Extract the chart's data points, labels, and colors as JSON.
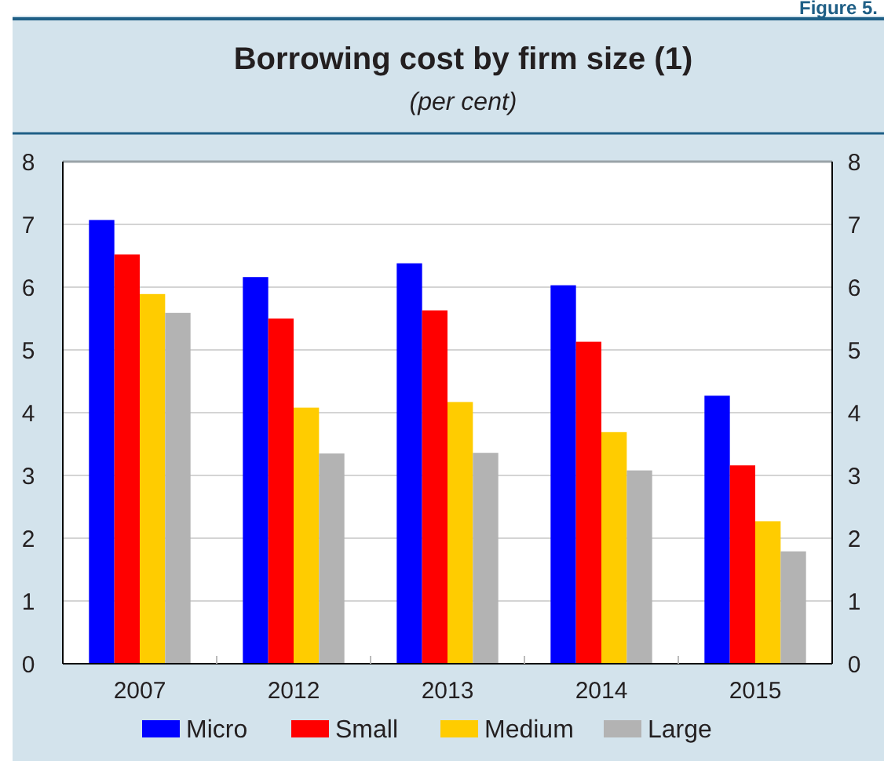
{
  "chart_data": {
    "type": "bar",
    "title": "Borrowing cost by firm size (1)",
    "subtitle": "(per cent)",
    "annotations": [
      "Figure 5."
    ],
    "categories": [
      "2007",
      "2012",
      "2013",
      "2014",
      "2015"
    ],
    "series": [
      {
        "name": "Micro",
        "color": "#0000ff",
        "values": [
          7.07,
          6.16,
          6.38,
          6.03,
          4.27
        ]
      },
      {
        "name": "Small",
        "color": "#ff0000",
        "values": [
          6.52,
          5.5,
          5.63,
          5.13,
          3.16
        ]
      },
      {
        "name": "Medium",
        "color": "#ffcc00",
        "values": [
          5.89,
          4.08,
          4.17,
          3.69,
          2.27
        ]
      },
      {
        "name": "Large",
        "color": "#b3b3b3",
        "values": [
          5.59,
          3.35,
          3.36,
          3.08,
          1.79
        ]
      }
    ],
    "ylim": [
      0,
      8
    ],
    "yticks": [
      0,
      1,
      2,
      3,
      4,
      5,
      6,
      7,
      8
    ],
    "y2lim": [
      0,
      8
    ],
    "y2ticks": [
      0,
      1,
      2,
      3,
      4,
      5,
      6,
      7,
      8
    ],
    "grid": "y",
    "legend": "bottom"
  }
}
